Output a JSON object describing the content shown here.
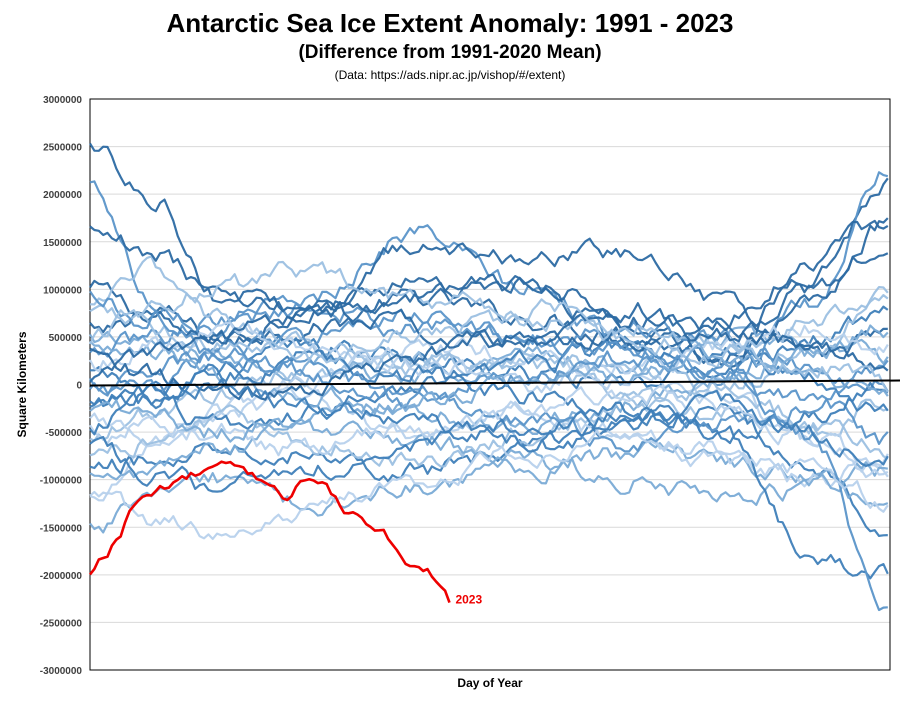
{
  "chart_data": {
    "type": "line",
    "title": "Antarctic Sea Ice Extent Anomaly: 1991 - 2023",
    "subtitle": "(Difference from 1991-2020 Mean)",
    "source": "(Data: https://ads.nipr.ac.jp/vishop/#/extent)",
    "xlabel": "Day of Year",
    "ylabel": "Square Kilometers",
    "xlim": [
      1,
      366
    ],
    "ylim": [
      -3000000,
      3000000
    ],
    "yticks": [
      3000000,
      2500000,
      2000000,
      1500000,
      1000000,
      500000,
      0,
      -500000,
      -1000000,
      -1500000,
      -2000000,
      -2500000,
      -3000000
    ],
    "ytick_labels": [
      "3000000",
      "2500000",
      "2000000",
      "1500000",
      "1000000",
      "500000",
      "0",
      "-500000",
      "-1000000",
      "-1500000",
      "-2000000",
      "-2500000",
      "-3000000"
    ],
    "grid": true,
    "colors": {
      "highlight": "#ee0000",
      "history_palette": [
        "#2c6aa3",
        "#3f7fb9",
        "#5b95c9",
        "#7aabd6",
        "#9cc0e2",
        "#b7d1ec"
      ]
    },
    "highlight_series": {
      "name": "2023",
      "label": "2023",
      "x": [
        1,
        7,
        14,
        21,
        28,
        35,
        42,
        49,
        56,
        63,
        70,
        77,
        84,
        91,
        98,
        105,
        112,
        119,
        126,
        133,
        140,
        147,
        154,
        161,
        165
      ],
      "values": [
        -2000000,
        -1850000,
        -1600000,
        -1250000,
        -1170000,
        -1080000,
        -1000000,
        -960000,
        -900000,
        -880000,
        -920000,
        -980000,
        -1030000,
        -1180000,
        -1050000,
        -1000000,
        -1150000,
        -1350000,
        -1480000,
        -1600000,
        -1700000,
        -1830000,
        -1950000,
        -2050000,
        -2250000
      ]
    },
    "history_series_count": 32,
    "history_series": [
      {
        "x": [
          1,
          30,
          60,
          100,
          150,
          200,
          250,
          290,
          330,
          366
        ],
        "values": [
          1000000,
          750000,
          500000,
          600000,
          900000,
          700000,
          500000,
          300000,
          1200000,
          2100000
        ]
      },
      {
        "x": [
          1,
          30,
          60,
          100,
          150,
          200,
          250,
          290,
          330,
          366
        ],
        "values": [
          -200000,
          -100000,
          200000,
          400000,
          300000,
          100000,
          0,
          200000,
          500000,
          700000
        ]
      },
      {
        "x": [
          1,
          30,
          60,
          100,
          150,
          200,
          250,
          290,
          330,
          366
        ],
        "values": [
          2100000,
          900000,
          600000,
          900000,
          1600000,
          1000000,
          400000,
          100000,
          800000,
          2300000
        ]
      },
      {
        "x": [
          1,
          30,
          60,
          100,
          150,
          200,
          250,
          290,
          330,
          366
        ],
        "values": [
          500000,
          400000,
          300000,
          200000,
          100000,
          300000,
          200000,
          500000,
          400000,
          300000
        ]
      },
      {
        "x": [
          1,
          30,
          60,
          100,
          150,
          200,
          250,
          290,
          330,
          366
        ],
        "values": [
          -600000,
          -300000,
          -100000,
          100000,
          300000,
          200000,
          -100000,
          -300000,
          -500000,
          -200000
        ]
      },
      {
        "x": [
          1,
          30,
          60,
          100,
          150,
          200,
          250,
          290,
          330,
          366
        ],
        "values": [
          -1200000,
          -600000,
          -300000,
          100000,
          400000,
          300000,
          0,
          -100000,
          -600000,
          -900000
        ]
      },
      {
        "x": [
          1,
          30,
          60,
          100,
          150,
          200,
          250,
          290,
          330,
          366
        ],
        "values": [
          2500000,
          2000000,
          900000,
          800000,
          1100000,
          1000000,
          600000,
          300000,
          800000,
          1700000
        ]
      },
      {
        "x": [
          1,
          30,
          60,
          100,
          150,
          200,
          250,
          290,
          330,
          366
        ],
        "values": [
          -900000,
          -800000,
          -600000,
          -700000,
          -900000,
          -700000,
          -400000,
          -300000,
          -900000,
          -1500000
        ]
      },
      {
        "x": [
          1,
          30,
          60,
          100,
          150,
          200,
          250,
          290,
          330,
          366
        ],
        "values": [
          300000,
          500000,
          700000,
          800000,
          600000,
          500000,
          600000,
          500000,
          200000,
          0
        ]
      },
      {
        "x": [
          1,
          30,
          60,
          100,
          150,
          200,
          250,
          290,
          330,
          366
        ],
        "values": [
          -1500000,
          -1200000,
          -1000000,
          -1300000,
          -1100000,
          -900000,
          -700000,
          -800000,
          -1000000,
          -1300000
        ]
      },
      {
        "x": [
          1,
          30,
          60,
          100,
          150,
          200,
          250,
          290,
          330,
          366
        ],
        "values": [
          800000,
          1200000,
          700000,
          400000,
          200000,
          300000,
          100000,
          -100000,
          400000,
          900000
        ]
      },
      {
        "x": [
          1,
          30,
          60,
          100,
          150,
          200,
          250,
          290,
          330,
          366
        ],
        "values": [
          -400000,
          -500000,
          -300000,
          -200000,
          -500000,
          -300000,
          -600000,
          -800000,
          -1000000,
          -800000
        ]
      },
      {
        "x": [
          1,
          30,
          60,
          100,
          150,
          200,
          250,
          290,
          330,
          366
        ],
        "values": [
          600000,
          700000,
          500000,
          700000,
          1500000,
          1300000,
          1400000,
          900000,
          300000,
          500000
        ]
      },
      {
        "x": [
          1,
          30,
          60,
          100,
          150,
          200,
          250,
          290,
          330,
          366
        ],
        "values": [
          100000,
          -200000,
          -400000,
          -300000,
          0,
          200000,
          400000,
          300000,
          100000,
          -300000
        ]
      },
      {
        "x": [
          1,
          30,
          60,
          100,
          150,
          200,
          250,
          290,
          330,
          366
        ],
        "values": [
          -100000,
          0,
          300000,
          500000,
          700000,
          500000,
          300000,
          100000,
          -200000,
          -600000
        ]
      },
      {
        "x": [
          1,
          30,
          60,
          100,
          150,
          200,
          250,
          290,
          330,
          366
        ],
        "values": [
          400000,
          300000,
          100000,
          -100000,
          -300000,
          -400000,
          -200000,
          100000,
          300000,
          600000
        ]
      },
      {
        "x": [
          1,
          30,
          60,
          100,
          150,
          200,
          250,
          290,
          330,
          366
        ],
        "values": [
          -800000,
          -600000,
          -400000,
          -600000,
          -800000,
          -500000,
          -200000,
          0,
          -400000,
          -700000
        ]
      },
      {
        "x": [
          1,
          30,
          60,
          100,
          150,
          200,
          250,
          290,
          330,
          366
        ],
        "values": [
          200000,
          400000,
          600000,
          400000,
          200000,
          0,
          200000,
          400000,
          600000,
          400000
        ]
      },
      {
        "x": [
          1,
          30,
          60,
          100,
          150,
          200,
          250,
          290,
          330,
          366
        ],
        "values": [
          1600000,
          1400000,
          1000000,
          800000,
          600000,
          400000,
          500000,
          700000,
          1300000,
          1700000
        ]
      },
      {
        "x": [
          1,
          30,
          60,
          100,
          150,
          200,
          250,
          290,
          330,
          366
        ],
        "values": [
          -300000,
          -100000,
          100000,
          300000,
          100000,
          -100000,
          -300000,
          -500000,
          -300000,
          0
        ]
      },
      {
        "x": [
          1,
          30,
          60,
          100,
          150,
          200,
          250,
          290,
          330,
          366
        ],
        "values": [
          0,
          200000,
          400000,
          200000,
          -200000,
          -400000,
          -600000,
          -400000,
          -200000,
          200000
        ]
      },
      {
        "x": [
          1,
          30,
          60,
          100,
          150,
          200,
          250,
          290,
          330,
          366
        ],
        "values": [
          -1000000,
          -900000,
          -700000,
          -500000,
          -600000,
          -800000,
          -1000000,
          -1200000,
          -1100000,
          -900000
        ]
      },
      {
        "x": [
          1,
          30,
          60,
          100,
          150,
          200,
          250,
          290,
          330,
          366
        ],
        "values": [
          700000,
          600000,
          400000,
          300000,
          500000,
          700000,
          500000,
          300000,
          700000,
          1000000
        ]
      },
      {
        "x": [
          1,
          30,
          60,
          100,
          150,
          200,
          250,
          290,
          330,
          366
        ],
        "values": [
          -500000,
          -400000,
          -500000,
          -700000,
          -500000,
          -300000,
          -100000,
          -200000,
          -600000,
          -1000000
        ]
      },
      {
        "x": [
          1,
          30,
          60,
          100,
          150,
          200,
          250,
          290,
          330,
          366
        ],
        "values": [
          300000,
          100000,
          -100000,
          0,
          300000,
          500000,
          700000,
          600000,
          400000,
          100000
        ]
      },
      {
        "x": [
          1,
          30,
          60,
          100,
          150,
          200,
          250,
          290,
          330,
          366
        ],
        "values": [
          -700000,
          -900000,
          -1100000,
          -900000,
          -600000,
          -400000,
          -300000,
          -500000,
          -1800000,
          -2000000
        ]
      },
      {
        "x": [
          1,
          30,
          60,
          100,
          150,
          200,
          250,
          290,
          330,
          366
        ],
        "values": [
          900000,
          700000,
          300000,
          100000,
          -100000,
          100000,
          300000,
          200000,
          -600000,
          -2400000
        ]
      },
      {
        "x": [
          1,
          30,
          60,
          100,
          150,
          200,
          250,
          290,
          330,
          366
        ],
        "values": [
          -200000,
          -300000,
          -500000,
          -400000,
          -200000,
          0,
          100000,
          300000,
          100000,
          -200000
        ]
      },
      {
        "x": [
          1,
          30,
          60,
          100,
          150,
          200,
          250,
          290,
          330,
          366
        ],
        "values": [
          500000,
          800000,
          1000000,
          1200000,
          900000,
          800000,
          600000,
          400000,
          200000,
          0
        ]
      },
      {
        "x": [
          1,
          30,
          60,
          100,
          150,
          200,
          250,
          290,
          330,
          366
        ],
        "values": [
          -1100000,
          -1400000,
          -1600000,
          -1300000,
          -1000000,
          -700000,
          -500000,
          -700000,
          -900000,
          -1200000
        ]
      },
      {
        "x": [
          1,
          30,
          60,
          100,
          150,
          200,
          250,
          290,
          330,
          366
        ],
        "values": [
          100000,
          300000,
          500000,
          700000,
          900000,
          1100000,
          800000,
          500000,
          1000000,
          1500000
        ]
      },
      {
        "x": [
          1,
          30,
          60,
          100,
          150,
          200,
          250,
          290,
          330,
          366
        ],
        "values": [
          -400000,
          -200000,
          0,
          -200000,
          -400000,
          -600000,
          -400000,
          -200000,
          -500000,
          -800000
        ]
      }
    ]
  }
}
